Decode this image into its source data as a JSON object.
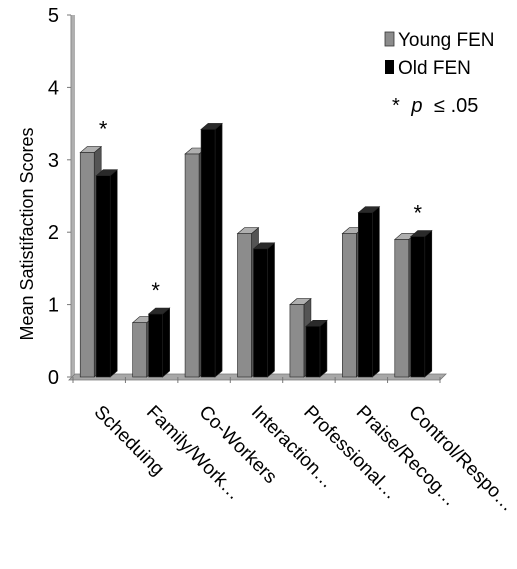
{
  "chart_data": {
    "type": "bar",
    "categories": [
      "Scheduing",
      "Family/Work…",
      "Co-Workers",
      "Interaction…",
      "Professional…",
      "Praise/Recog…",
      "Control/Respo…"
    ],
    "series": [
      {
        "name": "Young FEN",
        "values": [
          3.1,
          0.75,
          3.08,
          1.98,
          1.0,
          1.98,
          1.9
        ],
        "color": "#8c8c8c"
      },
      {
        "name": "Old FEN",
        "values": [
          2.78,
          0.87,
          3.42,
          1.77,
          0.7,
          2.27,
          1.94
        ],
        "color": "#000000"
      }
    ],
    "ylabel": "Mean Satistifaction Scores",
    "xlabel": "",
    "ylim": [
      0,
      5
    ],
    "yticks": [
      "0",
      "1",
      "2",
      "3",
      "4",
      "5"
    ],
    "significance_marker": "*",
    "significant_categories": [
      "Scheduing",
      "Family/Work…",
      "Control/Respo…"
    ],
    "annotation": {
      "star": "*",
      "p": "p",
      "rest": "≤ .05"
    },
    "legend_position": "top-right",
    "grid": false
  }
}
